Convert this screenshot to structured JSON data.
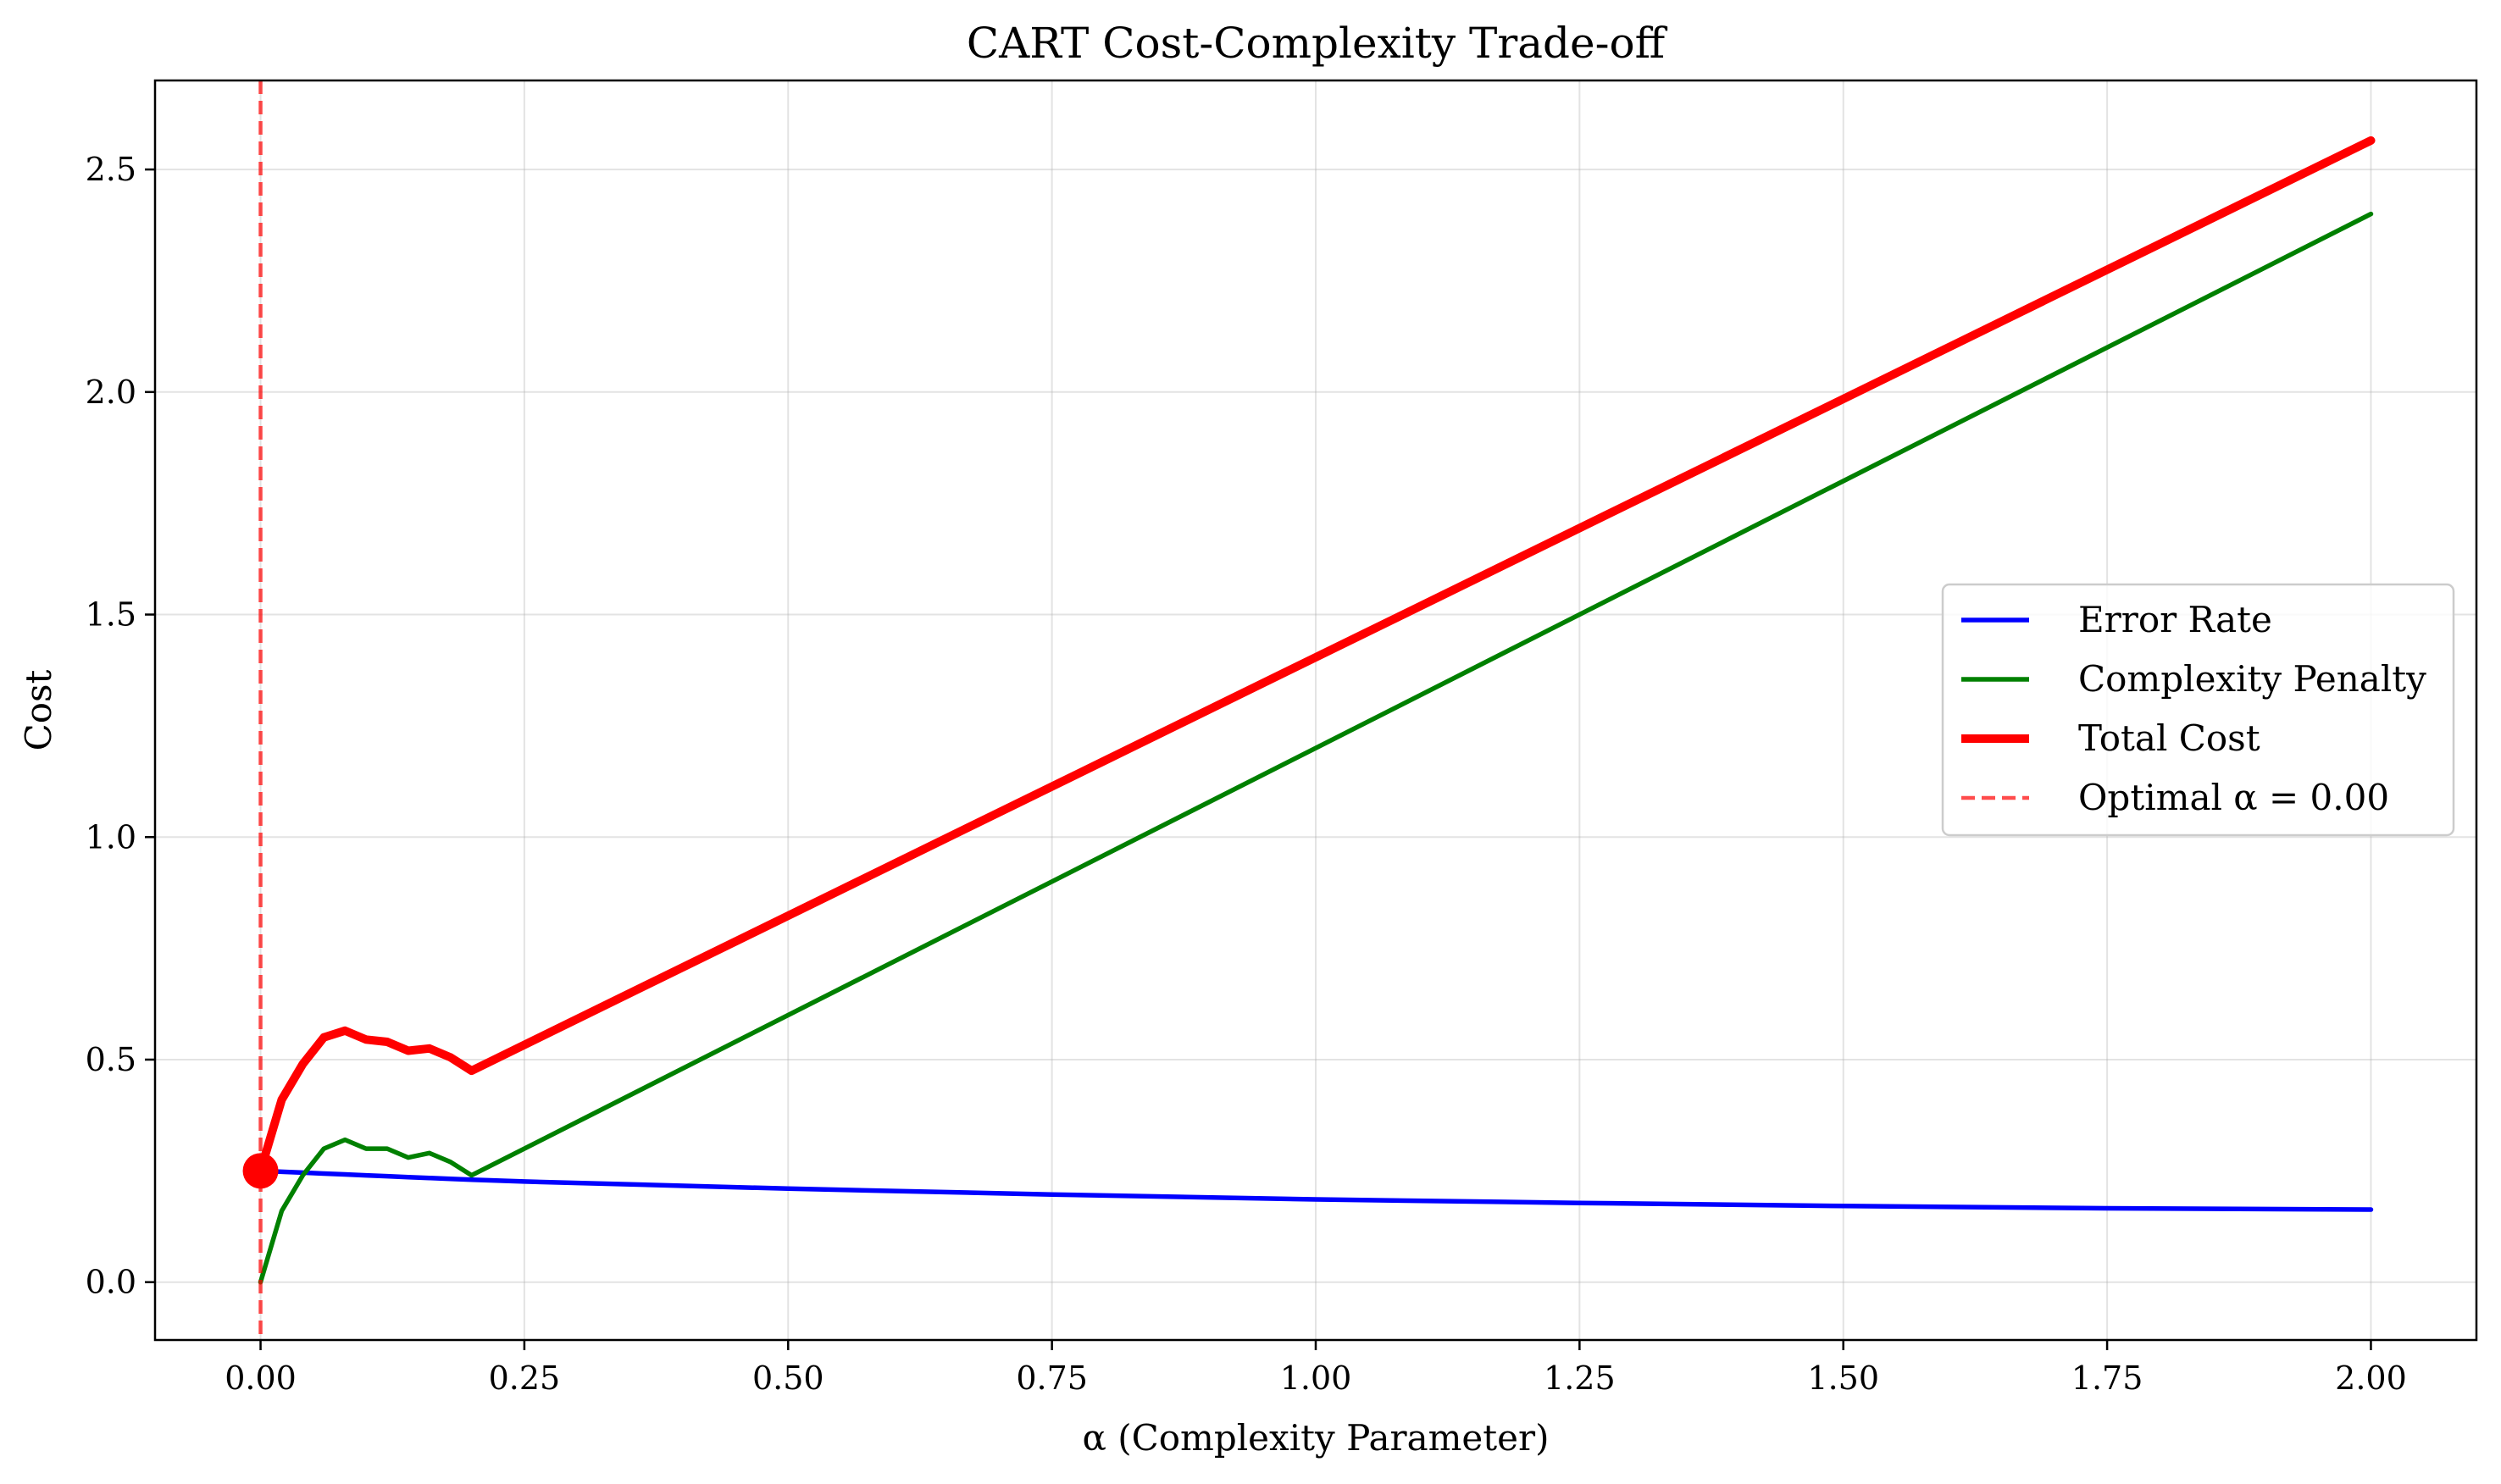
{
  "chart_data": {
    "type": "line",
    "title": "CART Cost-Complexity Trade-off",
    "xlabel": "α (Complexity Parameter)",
    "ylabel": "Cost",
    "xlim": [
      -0.1,
      2.1
    ],
    "ylim": [
      -0.13,
      2.7
    ],
    "xticks": [
      0.0,
      0.25,
      0.5,
      0.75,
      1.0,
      1.25,
      1.5,
      1.75,
      2.0
    ],
    "xtick_labels": [
      "0.00",
      "0.25",
      "0.50",
      "0.75",
      "1.00",
      "1.25",
      "1.50",
      "1.75",
      "2.00"
    ],
    "yticks": [
      0.0,
      0.5,
      1.0,
      1.5,
      2.0,
      2.5
    ],
    "ytick_labels": [
      "0.0",
      "0.5",
      "1.0",
      "1.5",
      "2.0",
      "2.5"
    ],
    "grid": true,
    "legend_position": "center-right",
    "series": [
      {
        "name": "Error Rate",
        "color": "#0000ff",
        "style": "solid",
        "x": [
          0.0,
          0.02,
          0.04,
          0.06,
          0.08,
          0.1,
          0.12,
          0.14,
          0.16,
          0.18,
          0.2,
          0.25,
          0.5,
          0.75,
          1.0,
          1.25,
          1.5,
          1.75,
          2.0
        ],
        "y": [
          0.25,
          0.248,
          0.246,
          0.244,
          0.242,
          0.24,
          0.238,
          0.236,
          0.234,
          0.232,
          0.23,
          0.226,
          0.21,
          0.197,
          0.186,
          0.178,
          0.171,
          0.166,
          0.163
        ]
      },
      {
        "name": "Complexity Penalty",
        "color": "#008000",
        "style": "solid",
        "x": [
          0.0,
          0.02,
          0.04,
          0.06,
          0.08,
          0.1,
          0.12,
          0.14,
          0.16,
          0.18,
          0.2,
          2.0
        ],
        "y": [
          0.0,
          0.16,
          0.24,
          0.3,
          0.32,
          0.3,
          0.3,
          0.28,
          0.29,
          0.27,
          0.24,
          2.4
        ]
      },
      {
        "name": "Total Cost",
        "color": "#ff0000",
        "style": "solid",
        "x": [
          0.0,
          0.02,
          0.04,
          0.06,
          0.08,
          0.1,
          0.12,
          0.14,
          0.16,
          0.18,
          0.2,
          2.0
        ],
        "y": [
          0.25,
          0.41,
          0.49,
          0.55,
          0.565,
          0.545,
          0.54,
          0.52,
          0.525,
          0.505,
          0.475,
          2.565
        ]
      },
      {
        "name": "Optimal α = 0.00",
        "color": "#ff0000",
        "style": "dashed",
        "vline_x": 0.0
      }
    ],
    "marker": {
      "x": 0.0,
      "y": 0.25,
      "color": "#ff0000"
    }
  }
}
